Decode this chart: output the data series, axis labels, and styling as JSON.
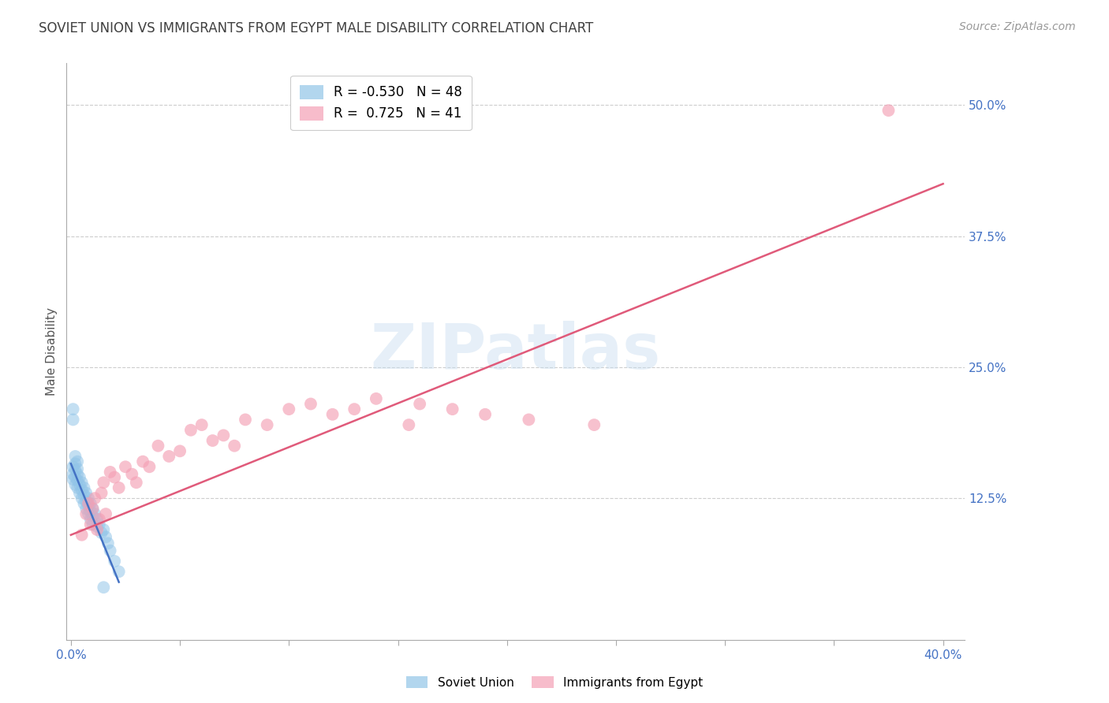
{
  "title": "SOVIET UNION VS IMMIGRANTS FROM EGYPT MALE DISABILITY CORRELATION CHART",
  "source": "Source: ZipAtlas.com",
  "xlabel_ticks": [
    "0.0%",
    "",
    "",
    "",
    "",
    "",
    "",
    "",
    "40.0%"
  ],
  "xlabel_tick_vals": [
    0.0,
    0.05,
    0.1,
    0.15,
    0.2,
    0.25,
    0.3,
    0.35,
    0.4
  ],
  "ylabel": "Male Disability",
  "ytick_labels": [
    "12.5%",
    "25.0%",
    "37.5%",
    "50.0%"
  ],
  "ytick_vals": [
    0.125,
    0.25,
    0.375,
    0.5
  ],
  "xlim": [
    -0.002,
    0.41
  ],
  "ylim": [
    -0.01,
    0.54
  ],
  "watermark": "ZIPatlas",
  "legend_blue_r": "-0.530",
  "legend_blue_n": "48",
  "legend_pink_r": "0.725",
  "legend_pink_n": "41",
  "blue_color": "#92c5e8",
  "pink_color": "#f4a0b5",
  "blue_line_color": "#4472c4",
  "pink_line_color": "#e05a7a",
  "title_color": "#404040",
  "axis_label_color": "#4472c4",
  "grid_color": "#c8c8c8",
  "soviet_x": [
    0.001,
    0.001,
    0.001,
    0.002,
    0.002,
    0.002,
    0.003,
    0.003,
    0.003,
    0.004,
    0.004,
    0.004,
    0.005,
    0.005,
    0.005,
    0.006,
    0.006,
    0.006,
    0.007,
    0.007,
    0.007,
    0.008,
    0.008,
    0.008,
    0.009,
    0.009,
    0.009,
    0.01,
    0.01,
    0.01,
    0.011,
    0.012,
    0.012,
    0.013,
    0.014,
    0.015,
    0.016,
    0.017,
    0.018,
    0.02,
    0.022,
    0.001,
    0.001,
    0.002,
    0.002,
    0.003,
    0.003,
    0.015
  ],
  "soviet_y": [
    0.155,
    0.148,
    0.143,
    0.152,
    0.145,
    0.138,
    0.148,
    0.142,
    0.135,
    0.145,
    0.138,
    0.13,
    0.14,
    0.133,
    0.125,
    0.135,
    0.128,
    0.12,
    0.13,
    0.122,
    0.115,
    0.125,
    0.118,
    0.11,
    0.12,
    0.112,
    0.105,
    0.115,
    0.108,
    0.1,
    0.11,
    0.105,
    0.098,
    0.1,
    0.092,
    0.095,
    0.088,
    0.082,
    0.075,
    0.065,
    0.055,
    0.21,
    0.2,
    0.165,
    0.158,
    0.16,
    0.153,
    0.04
  ],
  "egypt_x": [
    0.005,
    0.007,
    0.008,
    0.009,
    0.01,
    0.011,
    0.012,
    0.013,
    0.014,
    0.015,
    0.016,
    0.018,
    0.02,
    0.022,
    0.025,
    0.028,
    0.03,
    0.033,
    0.036,
    0.04,
    0.045,
    0.05,
    0.055,
    0.06,
    0.065,
    0.07,
    0.075,
    0.08,
    0.09,
    0.1,
    0.11,
    0.12,
    0.13,
    0.14,
    0.155,
    0.16,
    0.175,
    0.19,
    0.21,
    0.24,
    0.375
  ],
  "egypt_y": [
    0.09,
    0.11,
    0.12,
    0.1,
    0.115,
    0.125,
    0.095,
    0.105,
    0.13,
    0.14,
    0.11,
    0.15,
    0.145,
    0.135,
    0.155,
    0.148,
    0.14,
    0.16,
    0.155,
    0.175,
    0.165,
    0.17,
    0.19,
    0.195,
    0.18,
    0.185,
    0.175,
    0.2,
    0.195,
    0.21,
    0.215,
    0.205,
    0.21,
    0.22,
    0.195,
    0.215,
    0.21,
    0.205,
    0.2,
    0.195,
    0.495
  ],
  "blue_trendline_x": [
    0.0,
    0.022
  ],
  "blue_trendline_y": [
    0.158,
    0.045
  ],
  "pink_trendline_x": [
    0.0,
    0.4
  ],
  "pink_trendline_y": [
    0.09,
    0.425
  ]
}
